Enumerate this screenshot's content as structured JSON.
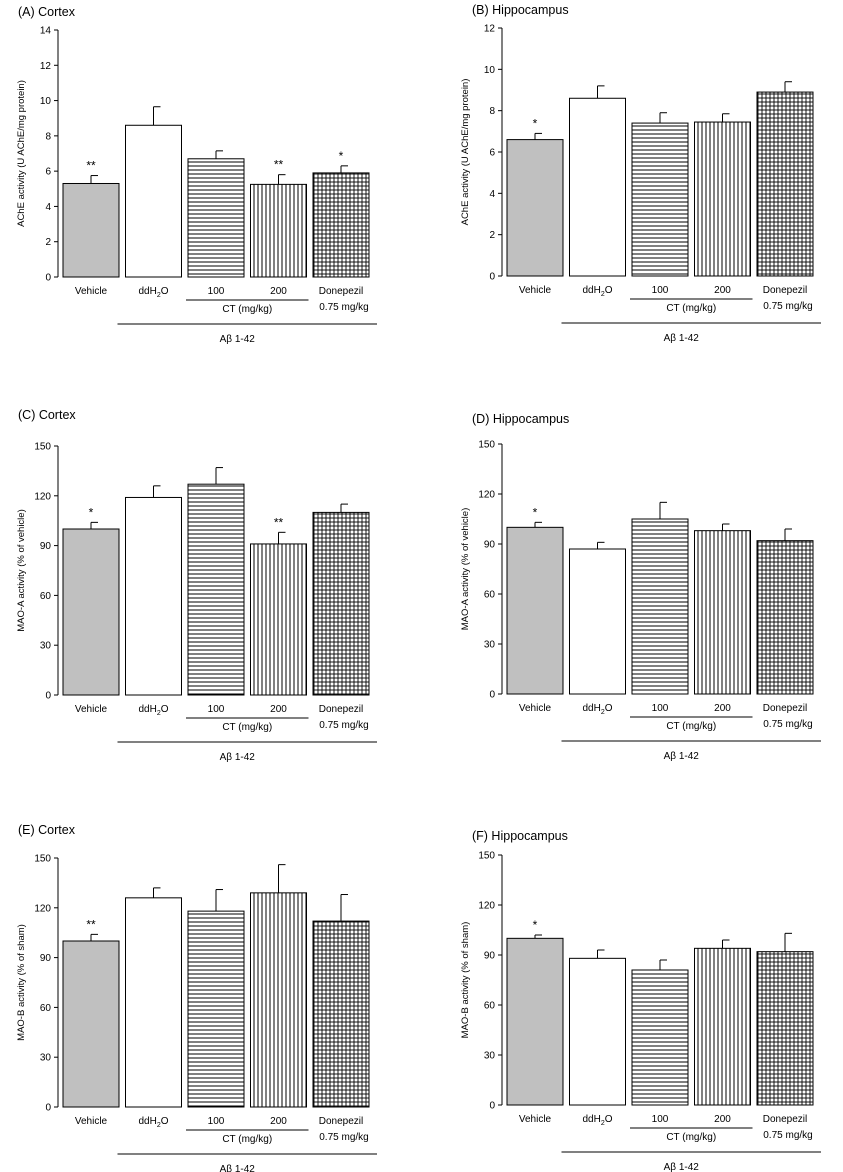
{
  "chart_data": [
    {
      "type": "bar",
      "panel": "(A) Cortex",
      "ylabel": "AChE activity (U AChE/mg protein)",
      "ylim": [
        0,
        14
      ],
      "yticks": [
        0,
        2,
        4,
        6,
        8,
        10,
        12,
        14
      ],
      "categories": [
        "Vehicle",
        "ddH2O",
        "100",
        "200",
        "Donepezil"
      ],
      "category_sublabels": [
        "",
        "",
        "",
        "",
        "0.75 mg/kg"
      ],
      "values": [
        5.3,
        8.6,
        6.7,
        5.25,
        5.9
      ],
      "errors": [
        0.45,
        1.05,
        0.45,
        0.55,
        0.4
      ],
      "significance": [
        "**",
        "",
        "",
        "**",
        "*"
      ],
      "fills": [
        "gray",
        "white",
        "hlines",
        "vlines",
        "grid"
      ],
      "group_label": "CT (mg/kg)",
      "bracket_label": "Aβ 1-42"
    },
    {
      "type": "bar",
      "panel": "(B) Hippocampus",
      "ylabel": "AChE activity (U AChE/mg protein)",
      "ylim": [
        0,
        12
      ],
      "yticks": [
        0,
        2,
        4,
        6,
        8,
        10,
        12
      ],
      "categories": [
        "Vehicle",
        "ddH2O",
        "100",
        "200",
        "Donepezil"
      ],
      "category_sublabels": [
        "",
        "",
        "",
        "",
        "0.75 mg/kg"
      ],
      "values": [
        6.6,
        8.6,
        7.4,
        7.45,
        8.9
      ],
      "errors": [
        0.3,
        0.6,
        0.5,
        0.4,
        0.5
      ],
      "significance": [
        "*",
        "",
        "",
        "",
        ""
      ],
      "fills": [
        "gray",
        "white",
        "hlines",
        "vlines",
        "grid"
      ],
      "group_label": "CT (mg/kg)",
      "bracket_label": "Aβ 1-42"
    },
    {
      "type": "bar",
      "panel": "(C) Cortex",
      "ylabel": "MAO-A activity (% of vehicle)",
      "ylim": [
        0,
        150
      ],
      "yticks": [
        0,
        30,
        60,
        90,
        120,
        150
      ],
      "categories": [
        "Vehicle",
        "ddH2O",
        "100",
        "200",
        "Donepezil"
      ],
      "category_sublabels": [
        "",
        "",
        "",
        "",
        "0.75 mg/kg"
      ],
      "values": [
        100,
        119,
        127,
        91,
        110
      ],
      "errors": [
        4,
        7,
        10,
        7,
        5
      ],
      "significance": [
        "*",
        "",
        "",
        "**",
        ""
      ],
      "fills": [
        "gray",
        "white",
        "hlines",
        "vlines",
        "grid"
      ],
      "group_label": "CT (mg/kg)",
      "bracket_label": "Aβ 1-42"
    },
    {
      "type": "bar",
      "panel": "(D) Hippocampus",
      "ylabel": "MAO-A activity (% of vehicle)",
      "ylim": [
        0,
        150
      ],
      "yticks": [
        0,
        30,
        60,
        90,
        120,
        150
      ],
      "categories": [
        "Vehicle",
        "ddH2O",
        "100",
        "200",
        "Donepezil"
      ],
      "category_sublabels": [
        "",
        "",
        "",
        "",
        "0.75 mg/kg"
      ],
      "values": [
        100,
        87,
        105,
        98,
        92
      ],
      "errors": [
        3,
        4,
        10,
        4,
        7
      ],
      "significance": [
        "*",
        "",
        "",
        "",
        ""
      ],
      "fills": [
        "gray",
        "white",
        "hlines",
        "vlines",
        "grid"
      ],
      "group_label": "CT (mg/kg)",
      "bracket_label": "Aβ 1-42"
    },
    {
      "type": "bar",
      "panel": "(E) Cortex",
      "ylabel": "MAO-B activity (% of sham)",
      "ylim": [
        0,
        150
      ],
      "yticks": [
        0,
        30,
        60,
        90,
        120,
        150
      ],
      "categories": [
        "Vehicle",
        "ddH2O",
        "100",
        "200",
        "Donepezil"
      ],
      "category_sublabels": [
        "",
        "",
        "",
        "",
        "0.75 mg/kg"
      ],
      "values": [
        100,
        126,
        118,
        129,
        112
      ],
      "errors": [
        4,
        6,
        13,
        17,
        16
      ],
      "significance": [
        "**",
        "",
        "",
        "",
        ""
      ],
      "fills": [
        "gray",
        "white",
        "hlines",
        "vlines",
        "grid"
      ],
      "group_label": "CT (mg/kg)",
      "bracket_label": "Aβ 1-42"
    },
    {
      "type": "bar",
      "panel": "(F) Hippocampus",
      "ylabel": "MAO-B activity (% of sham)",
      "ylim": [
        0,
        150
      ],
      "yticks": [
        0,
        30,
        60,
        90,
        120,
        150
      ],
      "categories": [
        "Vehicle",
        "ddH2O",
        "100",
        "200",
        "Donepezil"
      ],
      "category_sublabels": [
        "",
        "",
        "",
        "",
        "0.75 mg/kg"
      ],
      "values": [
        100,
        88,
        81,
        94,
        92
      ],
      "errors": [
        2,
        5,
        6,
        5,
        11
      ],
      "significance": [
        "*",
        "",
        "",
        "",
        ""
      ],
      "fills": [
        "gray",
        "white",
        "hlines",
        "vlines",
        "grid"
      ],
      "group_label": "CT (mg/kg)",
      "bracket_label": "Aβ 1-42"
    }
  ],
  "colors": {
    "vehicle_fill": "#c0c0c0",
    "stroke": "#000000",
    "background": "#ffffff"
  }
}
